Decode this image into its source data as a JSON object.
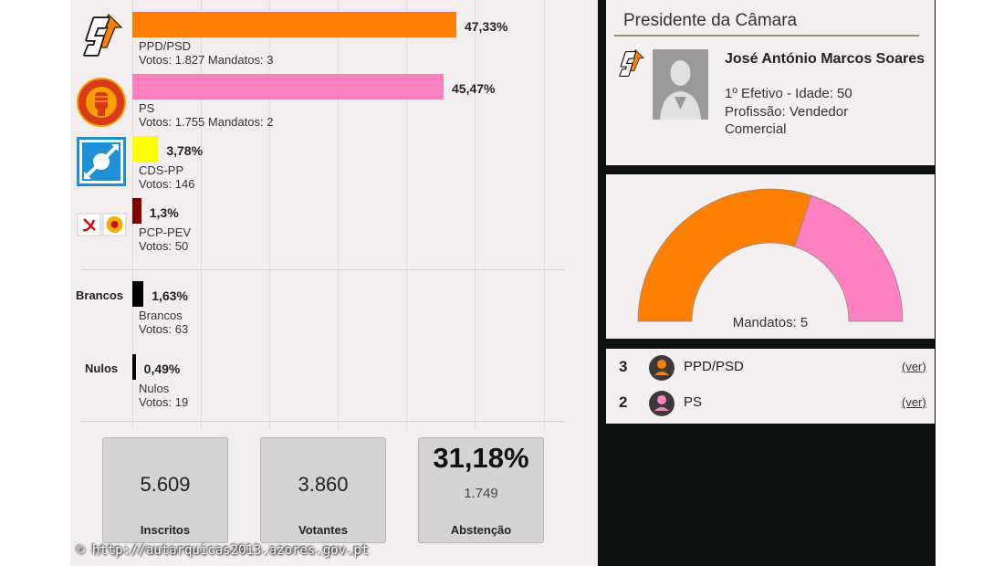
{
  "parties": [
    {
      "name": "PPD/PSD",
      "pct_label": "47,33%",
      "details": "Votos: 1.827 Mandatos: 3",
      "pct": 47.33,
      "color": "#ff8000"
    },
    {
      "name": "PS",
      "pct_label": "45,47%",
      "details": "Votos: 1.755 Mandatos: 2",
      "pct": 45.47,
      "color": "#ff80c0"
    },
    {
      "name": "CDS-PP",
      "pct_label": "3,78%",
      "details": "Votos: 146",
      "pct": 3.78,
      "color": "#ffff00"
    },
    {
      "name": "PCP-PEV",
      "pct_label": "1,3%",
      "details": "Votos: 50",
      "pct": 1.3,
      "color": "#800000"
    }
  ],
  "other_votes": [
    {
      "side_label": "Brancos",
      "name": "Brancos",
      "pct_label": "1,63%",
      "details": "Votos: 63",
      "pct": 1.63,
      "color": "#000000"
    },
    {
      "side_label": "Nulos",
      "name": "Nulos",
      "pct_label": "0,49%",
      "details": "Votos: 19",
      "pct": 0.49,
      "color": "#000000"
    }
  ],
  "stats": {
    "inscritos_value": "5.609",
    "inscritos_label": "Inscritos",
    "votantes_value": "3.860",
    "votantes_label": "Votantes",
    "abstencao_pct": "31,18%",
    "abstencao_value": "1.749",
    "abstencao_label": "Abstenção"
  },
  "president": {
    "heading": "Presidente da Câmara",
    "name": "José António Marcos Soares",
    "line1": "1º Efetivo - Idade: 50",
    "line2": "Profissão: Vendedor Comercial"
  },
  "seats": {
    "total_label": "Mandatos: 5",
    "rows": [
      {
        "count": "3",
        "party": "PPD/PSD",
        "seats": 3,
        "color": "#ff8000",
        "link": "(ver)"
      },
      {
        "count": "2",
        "party": "PS",
        "seats": 2,
        "color": "#ff80c0",
        "link": "(ver)"
      }
    ]
  },
  "watermark": "© http://autarquicas2013.azores.gov.pt",
  "chart_data": [
    {
      "type": "bar",
      "categories": [
        "PPD/PSD",
        "PS",
        "CDS-PP",
        "PCP-PEV",
        "Brancos",
        "Nulos"
      ],
      "values": [
        47.33,
        45.47,
        3.78,
        1.3,
        1.63,
        0.49
      ],
      "votes": [
        1827,
        1755,
        146,
        50,
        63,
        19
      ],
      "mandates": [
        3,
        2,
        0,
        0,
        0,
        0
      ],
      "orientation": "horizontal",
      "xlim": [
        0,
        50
      ]
    },
    {
      "type": "pie",
      "categories": [
        "PPD/PSD",
        "PS"
      ],
      "values": [
        3,
        2
      ],
      "shape": "semicircle donut"
    }
  ]
}
